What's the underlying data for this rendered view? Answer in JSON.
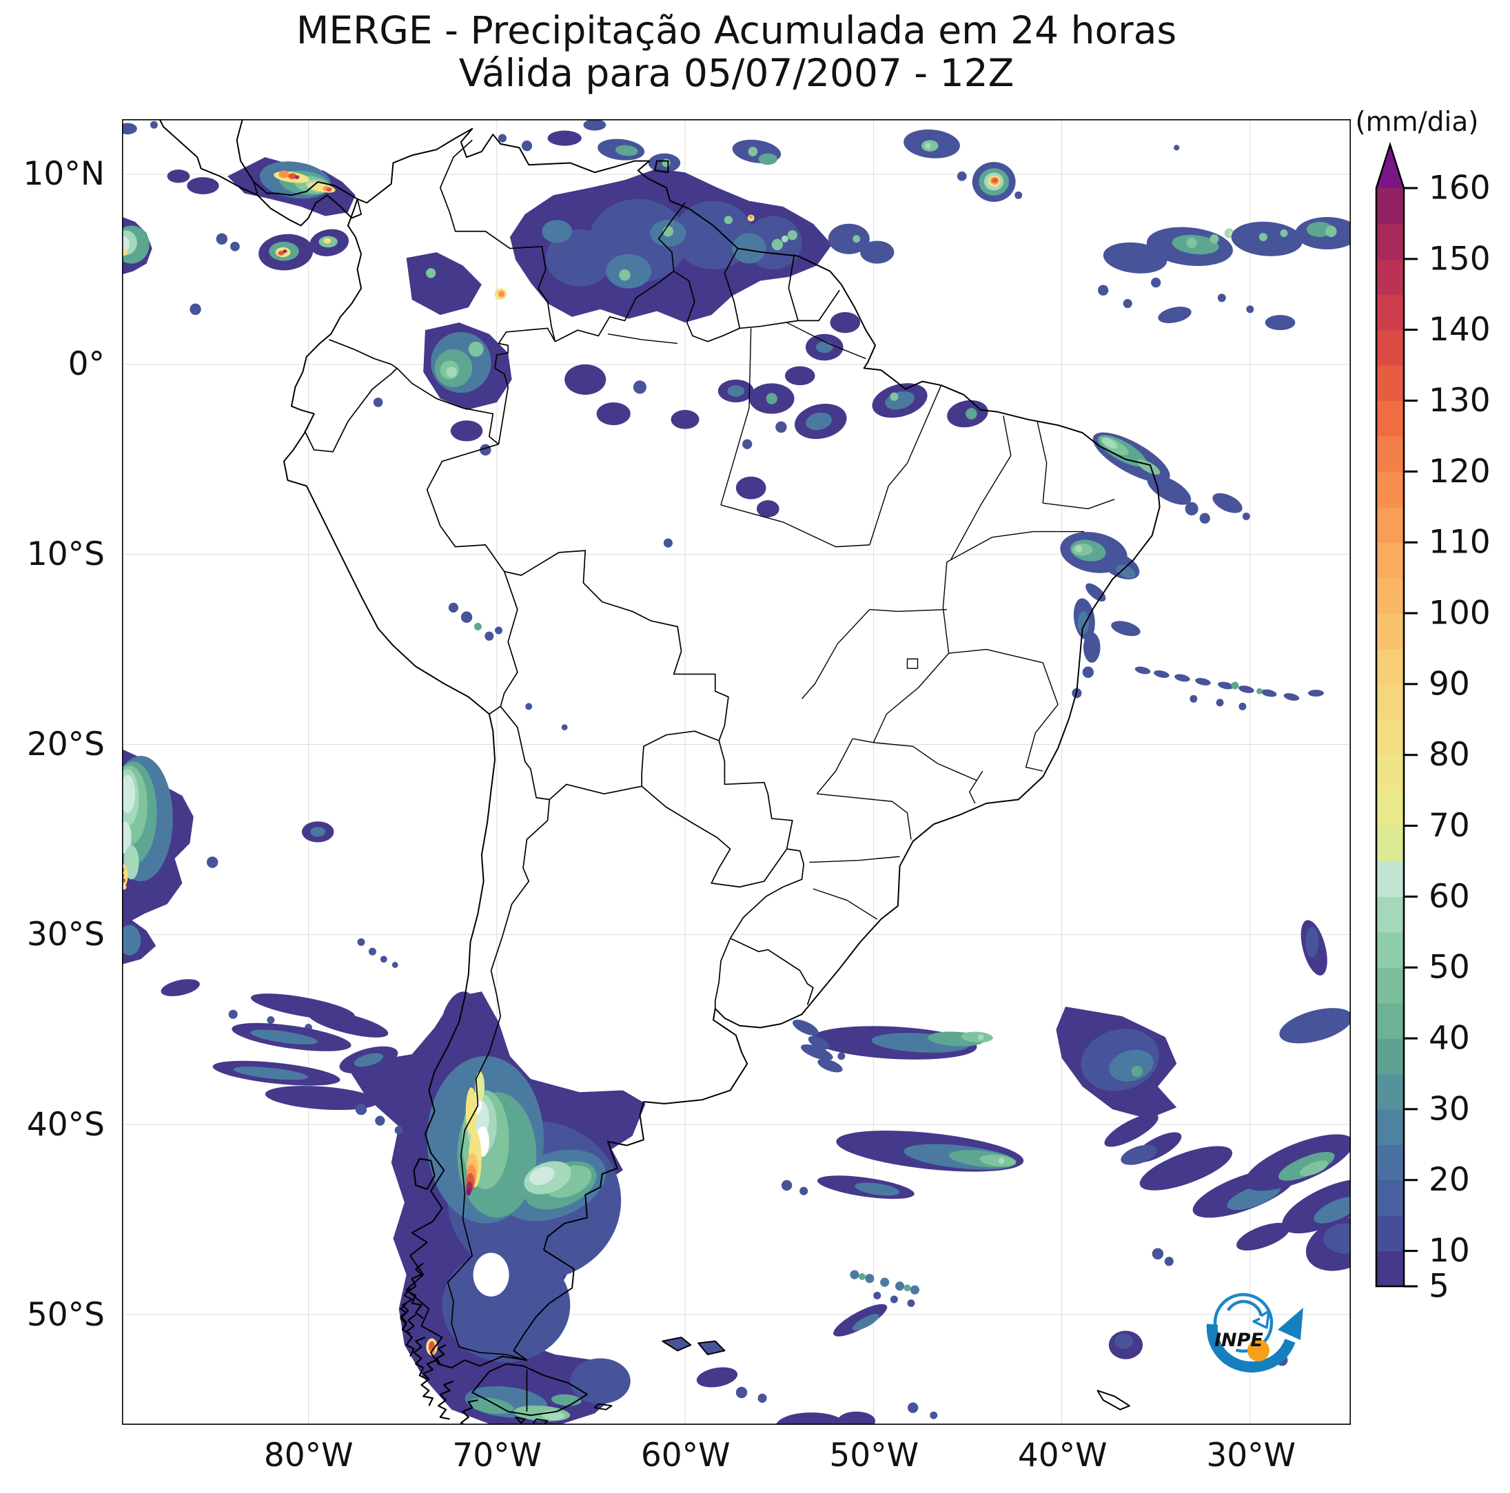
{
  "title": {
    "line1": "MERGE - Precipitação Acumulada em 24 horas",
    "line2": "Válida para 05/07/2007 - 12Z"
  },
  "axes": {
    "lat_ticks": [
      {
        "label": "10°N",
        "value": 10
      },
      {
        "label": "0°",
        "value": 0
      },
      {
        "label": "10°S",
        "value": -10
      },
      {
        "label": "20°S",
        "value": -20
      },
      {
        "label": "30°S",
        "value": -30
      },
      {
        "label": "40°S",
        "value": -40
      },
      {
        "label": "50°S",
        "value": -50
      }
    ],
    "lon_ticks": [
      {
        "label": "80°W",
        "value": -80
      },
      {
        "label": "70°W",
        "value": -70
      },
      {
        "label": "60°W",
        "value": -60
      },
      {
        "label": "50°W",
        "value": -50
      },
      {
        "label": "40°W",
        "value": -40
      },
      {
        "label": "30°W",
        "value": -30
      }
    ]
  },
  "colorbar": {
    "units_label": "(mm/dia)",
    "min": 5,
    "max": 160,
    "step": 5,
    "tick_values": [
      5,
      10,
      20,
      30,
      40,
      50,
      60,
      70,
      80,
      90,
      100,
      110,
      120,
      130,
      140,
      150,
      160
    ],
    "overflow_color": "#7b1687",
    "segments": [
      {
        "from": 5,
        "color": "#45398b"
      },
      {
        "from": 10,
        "color": "#454f98"
      },
      {
        "from": 15,
        "color": "#47609f"
      },
      {
        "from": 20,
        "color": "#4a70a2"
      },
      {
        "from": 25,
        "color": "#4f81a0"
      },
      {
        "from": 30,
        "color": "#559299"
      },
      {
        "from": 35,
        "color": "#5ea293"
      },
      {
        "from": 40,
        "color": "#6cb295"
      },
      {
        "from": 45,
        "color": "#7dbf9c"
      },
      {
        "from": 50,
        "color": "#90cdaa"
      },
      {
        "from": 55,
        "color": "#a5d8bb"
      },
      {
        "from": 60,
        "color": "#c2e5d2"
      },
      {
        "from": 65,
        "color": "#dcea94"
      },
      {
        "from": 70,
        "color": "#e9e98b"
      },
      {
        "from": 75,
        "color": "#efe487"
      },
      {
        "from": 80,
        "color": "#f3de82"
      },
      {
        "from": 85,
        "color": "#f5d67c"
      },
      {
        "from": 90,
        "color": "#f7cd75"
      },
      {
        "from": 95,
        "color": "#f8c26d"
      },
      {
        "from": 100,
        "color": "#f9b765"
      },
      {
        "from": 105,
        "color": "#faab5d"
      },
      {
        "from": 110,
        "color": "#f99e56"
      },
      {
        "from": 115,
        "color": "#f78f4e"
      },
      {
        "from": 120,
        "color": "#f47f48"
      },
      {
        "from": 125,
        "color": "#f06e42"
      },
      {
        "from": 130,
        "color": "#e75d41"
      },
      {
        "from": 135,
        "color": "#db4b44"
      },
      {
        "from": 140,
        "color": "#cc3e4b"
      },
      {
        "from": 145,
        "color": "#bb3254"
      },
      {
        "from": 150,
        "color": "#a82a5d"
      },
      {
        "from": 155,
        "color": "#932263"
      }
    ]
  },
  "logo": {
    "label": "INPE"
  }
}
